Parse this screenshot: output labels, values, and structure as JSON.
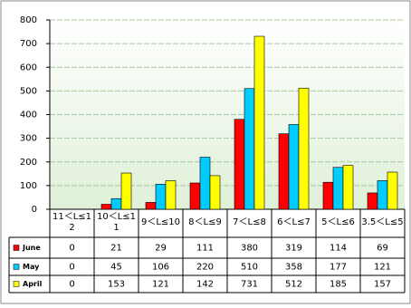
{
  "chart_data": {
    "type": "bar",
    "categories": [
      "11＜L≤12",
      "10＜L≤11",
      "9＜L≤10",
      "8＜L≤9",
      "7＜L≤8",
      "6＜L≤7",
      "5＜L≤6",
      "3.5＜L≤5"
    ],
    "series": [
      {
        "name": "June",
        "color": "#ff0000",
        "values": [
          0,
          21,
          29,
          111,
          380,
          319,
          114,
          69
        ]
      },
      {
        "name": "May",
        "color": "#00ccff",
        "values": [
          0,
          45,
          106,
          220,
          510,
          358,
          177,
          121
        ]
      },
      {
        "name": "April",
        "color": "#ffff00",
        "values": [
          0,
          153,
          121,
          142,
          731,
          512,
          185,
          157
        ]
      }
    ],
    "ylim": [
      0,
      800
    ],
    "yticks": [
      0,
      100,
      200,
      300,
      400,
      500,
      600,
      700,
      800
    ],
    "grid": true
  }
}
